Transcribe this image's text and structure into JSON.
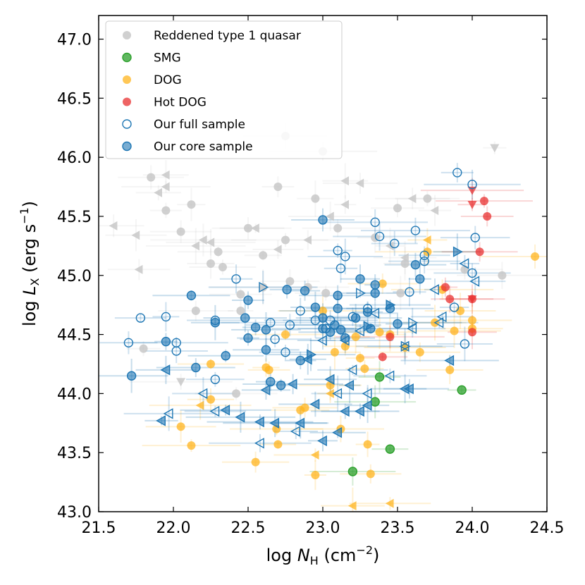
{
  "chart_data": {
    "type": "scatter",
    "xlabel": "log N_H (cm^-2)",
    "ylabel": "log L_X (erg s^-1)",
    "xlim": [
      21.5,
      24.5
    ],
    "ylim": [
      43.0,
      47.2
    ],
    "xticks": [
      "21.5",
      "22.0",
      "22.5",
      "23.0",
      "23.5",
      "24.0",
      "24.5"
    ],
    "yticks": [
      "43.0",
      "43.5",
      "44.0",
      "44.5",
      "45.0",
      "45.5",
      "46.0",
      "46.5",
      "47.0"
    ],
    "legend_position": "top-left",
    "series": [
      {
        "name": "Reddened type 1 quasar",
        "color": "#c8c8c8",
        "marker": "filled-circle",
        "points": [
          [
            21.85,
            45.83
          ],
          [
            21.95,
            45.55
          ],
          [
            22.05,
            45.37
          ],
          [
            22.12,
            45.6
          ],
          [
            22.15,
            44.7
          ],
          [
            22.25,
            45.1
          ],
          [
            22.3,
            45.2
          ],
          [
            22.33,
            45.07
          ],
          [
            22.42,
            44.0
          ],
          [
            22.5,
            45.4
          ],
          [
            22.6,
            45.17
          ],
          [
            22.6,
            44.9
          ],
          [
            22.7,
            45.75
          ],
          [
            22.75,
            45.3
          ],
          [
            22.78,
            44.95
          ],
          [
            22.9,
            44.9
          ],
          [
            22.95,
            45.65
          ],
          [
            23.02,
            44.85
          ],
          [
            23.1,
            45.4
          ],
          [
            23.35,
            45.32
          ],
          [
            23.5,
            45.57
          ],
          [
            23.52,
            44.85
          ],
          [
            23.55,
            45.1
          ],
          [
            23.7,
            45.65
          ],
          [
            23.95,
            45.05
          ],
          [
            24.2,
            45.0
          ],
          [
            21.8,
            44.38
          ],
          [
            22.45,
            44.84
          ],
          [
            22.45,
            44.7
          ],
          [
            22.75,
            46.18
          ],
          [
            23.0,
            46.05
          ]
        ],
        "triangles_left": [
          [
            21.6,
            45.42
          ],
          [
            21.75,
            45.34
          ],
          [
            21.77,
            45.05
          ],
          [
            21.9,
            45.7
          ],
          [
            21.95,
            45.75
          ],
          [
            21.95,
            45.85
          ],
          [
            22.15,
            45.25
          ],
          [
            22.2,
            45.3
          ],
          [
            22.25,
            45.28
          ],
          [
            22.55,
            45.4
          ],
          [
            22.7,
            45.22
          ],
          [
            22.9,
            45.3
          ],
          [
            23.05,
            45.5
          ],
          [
            23.15,
            45.8
          ],
          [
            23.15,
            45.6
          ],
          [
            23.25,
            45.78
          ],
          [
            23.45,
            45.25
          ],
          [
            23.55,
            45.15
          ],
          [
            23.6,
            45.65
          ],
          [
            23.75,
            45.55
          ]
        ],
        "triangles_down": [
          [
            22.05,
            44.1
          ],
          [
            24.15,
            46.08
          ]
        ]
      },
      {
        "name": "SMG",
        "color": "#2ca02c",
        "marker": "filled-circle",
        "points": [
          [
            23.2,
            43.34
          ],
          [
            23.35,
            43.93
          ],
          [
            23.38,
            44.14
          ],
          [
            23.45,
            43.53
          ],
          [
            23.93,
            44.03
          ]
        ]
      },
      {
        "name": "DOG",
        "color": "#ffb41e",
        "marker": "filled-circle",
        "points": [
          [
            22.05,
            43.72
          ],
          [
            22.12,
            43.56
          ],
          [
            22.25,
            44.25
          ],
          [
            22.25,
            43.95
          ],
          [
            22.62,
            44.22
          ],
          [
            22.64,
            44.2
          ],
          [
            22.69,
            43.7
          ],
          [
            22.7,
            43.57
          ],
          [
            22.75,
            44.5
          ],
          [
            22.85,
            43.86
          ],
          [
            22.88,
            43.88
          ],
          [
            22.95,
            43.31
          ],
          [
            23.05,
            44.07
          ],
          [
            23.08,
            44.35
          ],
          [
            23.12,
            43.7
          ],
          [
            23.15,
            44.4
          ],
          [
            23.22,
            44.48
          ],
          [
            23.25,
            44.3
          ],
          [
            23.28,
            44.21
          ],
          [
            23.3,
            43.57
          ],
          [
            23.32,
            43.32
          ],
          [
            23.38,
            44.52
          ],
          [
            23.4,
            44.93
          ],
          [
            23.45,
            44.5
          ],
          [
            23.55,
            44.39
          ],
          [
            23.7,
            45.2
          ],
          [
            23.75,
            44.6
          ],
          [
            23.8,
            44.88
          ],
          [
            23.85,
            44.2
          ],
          [
            23.88,
            44.53
          ],
          [
            23.92,
            44.7
          ],
          [
            24.0,
            44.62
          ],
          [
            24.0,
            44.55
          ],
          [
            24.42,
            45.16
          ],
          [
            23.65,
            44.35
          ],
          [
            23.0,
            44.7
          ],
          [
            22.55,
            43.42
          ]
        ],
        "triangles_left": [
          [
            22.18,
            43.9
          ],
          [
            23.05,
            44.0
          ],
          [
            23.2,
            43.05
          ],
          [
            23.45,
            43.07
          ],
          [
            22.95,
            43.48
          ],
          [
            23.7,
            45.3
          ]
        ]
      },
      {
        "name": "Hot DOG",
        "color": "#e83030",
        "marker": "filled-circle",
        "points": [
          [
            23.4,
            44.31
          ],
          [
            23.45,
            44.48
          ],
          [
            23.82,
            44.9
          ],
          [
            23.85,
            44.8
          ],
          [
            24.0,
            44.8
          ],
          [
            24.0,
            44.52
          ],
          [
            24.05,
            45.2
          ],
          [
            24.08,
            45.63
          ],
          [
            24.1,
            45.5
          ]
        ],
        "triangles_down": [
          [
            24.0,
            45.72
          ],
          [
            24.0,
            45.6
          ],
          [
            24.0,
            44.8
          ]
        ]
      },
      {
        "name": "Our full sample",
        "color": "#1f77b4",
        "marker": "open-circle",
        "points": [
          [
            21.7,
            44.43
          ],
          [
            21.78,
            44.64
          ],
          [
            21.95,
            44.65
          ],
          [
            22.02,
            44.36
          ],
          [
            22.02,
            44.43
          ],
          [
            22.28,
            44.12
          ],
          [
            22.28,
            44.62
          ],
          [
            22.42,
            44.97
          ],
          [
            22.65,
            44.6
          ],
          [
            22.68,
            44.46
          ],
          [
            22.75,
            44.35
          ],
          [
            22.78,
            44.58
          ],
          [
            22.85,
            44.7
          ],
          [
            22.95,
            44.62
          ],
          [
            23.02,
            44.55
          ],
          [
            23.05,
            44.62
          ],
          [
            23.1,
            45.21
          ],
          [
            23.12,
            45.06
          ],
          [
            23.15,
            45.16
          ],
          [
            23.2,
            44.65
          ],
          [
            23.3,
            44.72
          ],
          [
            23.35,
            45.45
          ],
          [
            23.38,
            45.33
          ],
          [
            23.48,
            45.27
          ],
          [
            23.58,
            44.86
          ],
          [
            23.62,
            45.38
          ],
          [
            23.68,
            45.17
          ],
          [
            23.68,
            45.12
          ],
          [
            23.9,
            45.87
          ],
          [
            24.0,
            45.77
          ],
          [
            24.02,
            45.32
          ],
          [
            24.0,
            45.02
          ],
          [
            23.88,
            44.73
          ],
          [
            23.95,
            44.42
          ]
        ],
        "triangles_left": [
          [
            21.97,
            43.83
          ],
          [
            22.2,
            44.0
          ],
          [
            22.28,
            43.85
          ],
          [
            22.58,
            43.58
          ],
          [
            22.82,
            43.68
          ],
          [
            23.0,
            44.45
          ],
          [
            23.1,
            44.0
          ],
          [
            23.15,
            44.45
          ],
          [
            23.2,
            44.2
          ],
          [
            23.25,
            44.53
          ],
          [
            23.3,
            44.0
          ],
          [
            23.35,
            44.68
          ],
          [
            23.45,
            44.15
          ],
          [
            23.55,
            44.4
          ],
          [
            23.6,
            44.55
          ],
          [
            23.75,
            44.88
          ],
          [
            23.8,
            44.65
          ],
          [
            23.78,
            44.6
          ],
          [
            23.95,
            45.1
          ],
          [
            24.02,
            44.95
          ]
        ],
        "triangles_right": [
          [
            22.6,
            44.9
          ],
          [
            23.25,
            44.85
          ],
          [
            23.55,
            44.4
          ],
          [
            23.6,
            44.6
          ]
        ]
      },
      {
        "name": "Our core sample",
        "color": "#1f77b4",
        "marker": "filled-circle",
        "points": [
          [
            21.72,
            44.15
          ],
          [
            21.95,
            44.44
          ],
          [
            22.12,
            44.83
          ],
          [
            22.15,
            44.22
          ],
          [
            22.28,
            44.6
          ],
          [
            22.35,
            44.32
          ],
          [
            22.48,
            44.64
          ],
          [
            22.5,
            44.47
          ],
          [
            22.5,
            44.79
          ],
          [
            22.55,
            44.56
          ],
          [
            22.62,
            44.37
          ],
          [
            22.62,
            44.54
          ],
          [
            22.65,
            44.1
          ],
          [
            22.72,
            44.07
          ],
          [
            22.76,
            44.88
          ],
          [
            22.85,
            44.28
          ],
          [
            22.88,
            44.87
          ],
          [
            22.95,
            44.73
          ],
          [
            23.0,
            45.47
          ],
          [
            23.0,
            44.55
          ],
          [
            23.0,
            44.64
          ],
          [
            23.05,
            44.52
          ],
          [
            23.08,
            44.58
          ],
          [
            23.1,
            44.83
          ],
          [
            23.1,
            44.72
          ],
          [
            23.12,
            44.54
          ],
          [
            23.15,
            44.47
          ],
          [
            23.22,
            44.64
          ],
          [
            23.25,
            44.97
          ],
          [
            23.3,
            44.69
          ],
          [
            23.32,
            44.55
          ],
          [
            23.35,
            44.85
          ],
          [
            23.35,
            44.92
          ],
          [
            23.45,
            44.72
          ],
          [
            23.5,
            44.59
          ],
          [
            23.62,
            45.09
          ],
          [
            23.65,
            44.97
          ]
        ],
        "triangles_left": [
          [
            21.95,
            44.2
          ],
          [
            22.35,
            43.86
          ],
          [
            22.45,
            43.8
          ],
          [
            22.58,
            43.76
          ],
          [
            22.62,
            44.03
          ],
          [
            22.68,
            43.75
          ],
          [
            22.8,
            44.08
          ],
          [
            22.85,
            43.75
          ],
          [
            22.9,
            44.29
          ],
          [
            22.95,
            43.91
          ],
          [
            23.05,
            44.12
          ],
          [
            23.0,
            43.6
          ],
          [
            23.1,
            43.67
          ],
          [
            23.15,
            43.85
          ],
          [
            23.18,
            44.07
          ],
          [
            23.25,
            43.85
          ],
          [
            23.3,
            43.9
          ],
          [
            23.55,
            44.04
          ],
          [
            23.58,
            44.04
          ],
          [
            23.85,
            44.28
          ],
          [
            21.92,
            43.77
          ]
        ],
        "triangles_right": [
          [
            22.92,
            44.33
          ],
          [
            23.45,
            44.75
          ],
          [
            23.3,
            44.57
          ],
          [
            23.9,
            45.2
          ]
        ]
      }
    ]
  }
}
